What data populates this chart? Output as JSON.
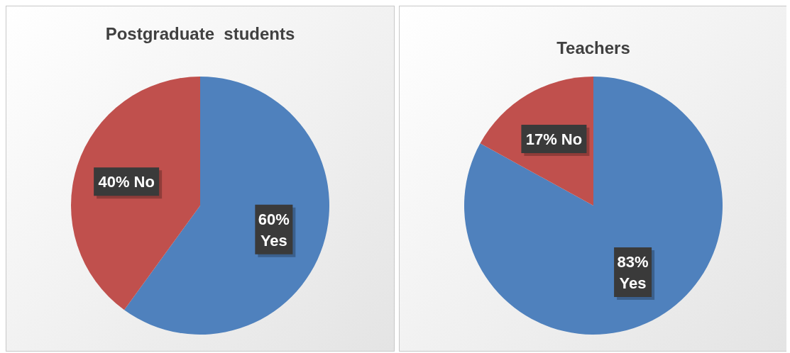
{
  "chart_data": [
    {
      "type": "pie",
      "title": "Postgraduate  students",
      "categories": [
        "Yes",
        "No"
      ],
      "values": [
        60,
        40
      ],
      "colors": [
        "#4f81bd",
        "#c0504d"
      ],
      "value_labels": [
        "60%",
        "40%"
      ]
    },
    {
      "type": "pie",
      "title": "Teachers",
      "categories": [
        "Yes",
        "No"
      ],
      "values": [
        83,
        17
      ],
      "colors": [
        "#4f81bd",
        "#c0504d"
      ],
      "value_labels": [
        "83%",
        "17%"
      ]
    }
  ]
}
